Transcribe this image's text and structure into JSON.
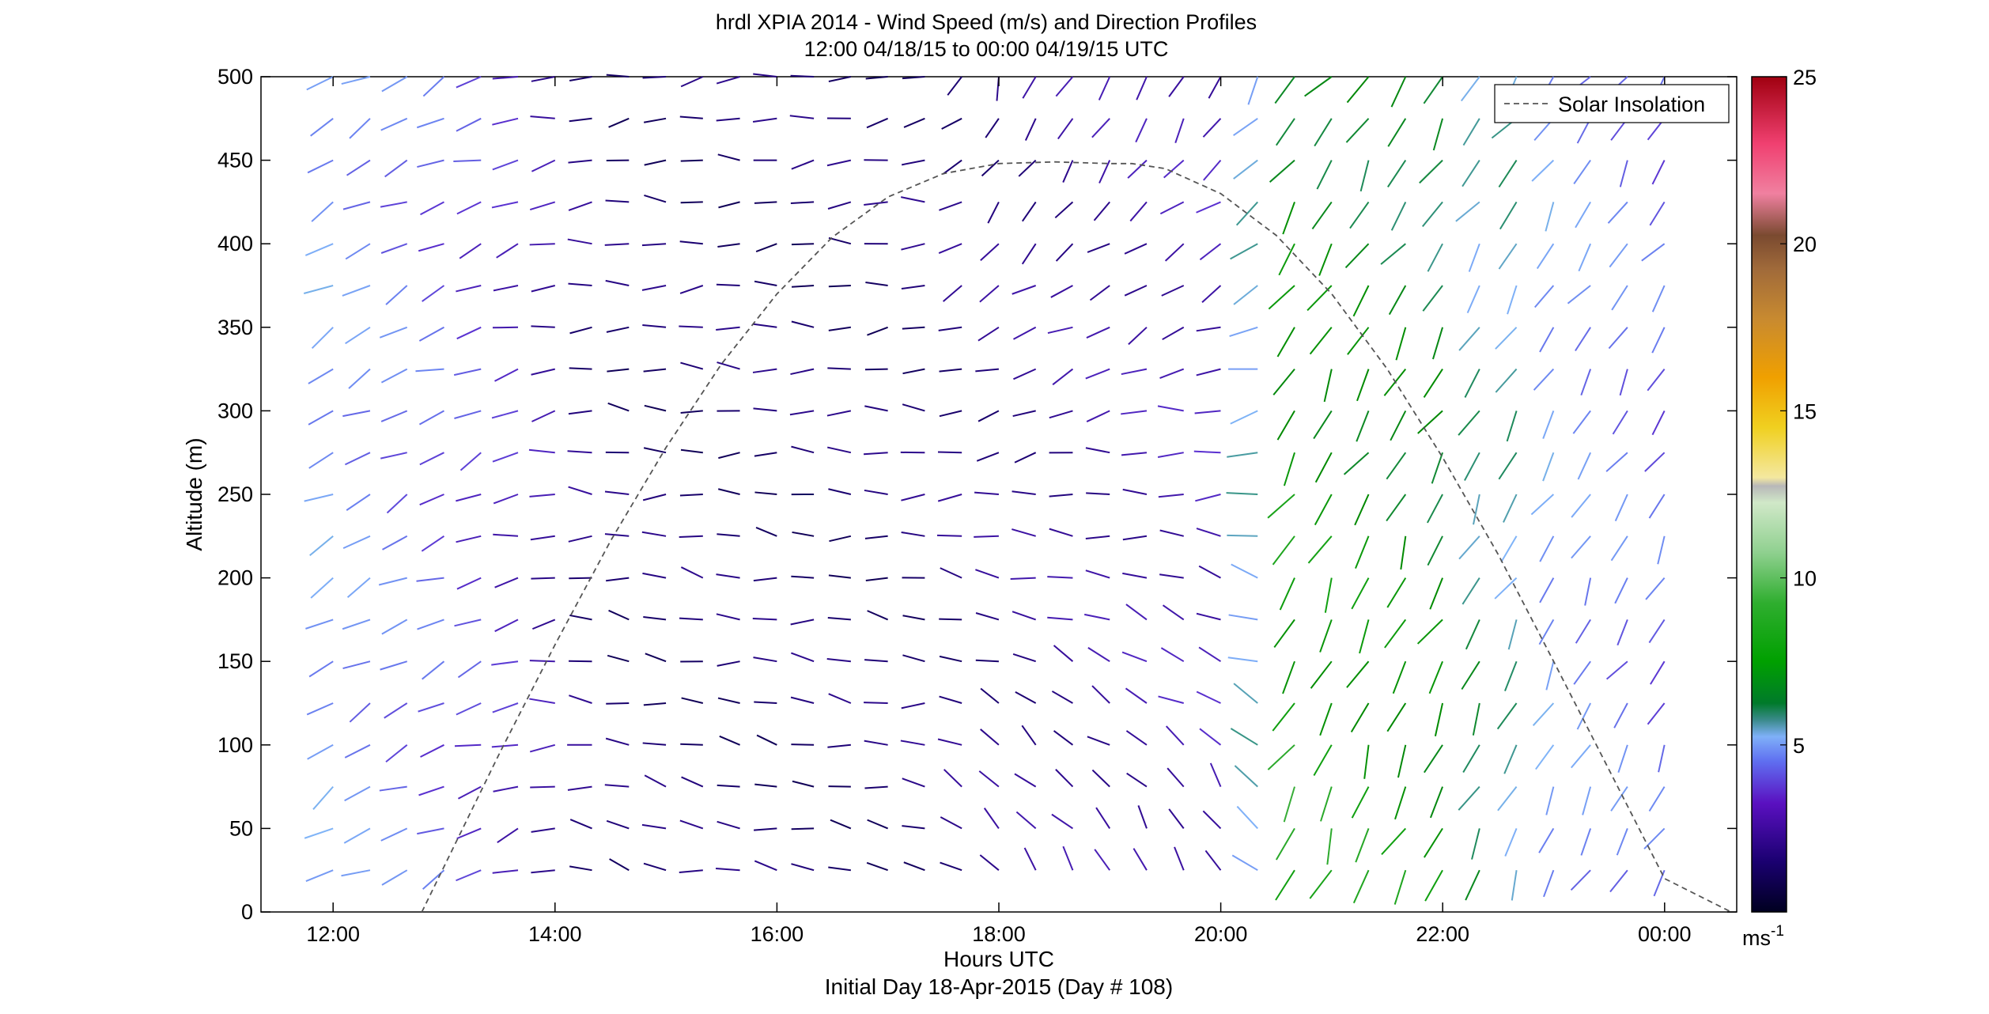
{
  "chart_data": {
    "type": "wind-barb-profile",
    "title": "hrdl XPIA 2014 - Wind Speed (m/s) and Direction Profiles",
    "subtitle": "12:00 04/18/15 to 00:00 04/19/15  UTC",
    "xlabel": "Hours UTC",
    "xlabel2": "Initial Day 18-Apr-2015 (Day # 108)",
    "ylabel": "Altitude (m)",
    "x_ticks": [
      "12:00",
      "14:00",
      "16:00",
      "18:00",
      "20:00",
      "22:00",
      "00:00"
    ],
    "x_tick_hours": [
      12,
      14,
      16,
      18,
      20,
      22,
      24
    ],
    "xlim_hours": [
      11.35,
      24.65
    ],
    "y_ticks": [
      "0",
      "50",
      "100",
      "150",
      "200",
      "250",
      "300",
      "350",
      "400",
      "450",
      "500"
    ],
    "ylim": [
      0,
      500
    ],
    "colorbar": {
      "label": "ms",
      "label_superscript": "-1",
      "ticks": [
        "5",
        "10",
        "15",
        "20",
        "25"
      ],
      "range": [
        0,
        25
      ]
    },
    "legend": {
      "entry": "Solar Insolation",
      "style": "dashed",
      "placement": "top-right"
    },
    "solar_insolation": {
      "x_hours": [
        12.8,
        13.5,
        14.0,
        14.5,
        15.0,
        15.5,
        16.0,
        16.5,
        17.0,
        17.5,
        18.0,
        18.5,
        19.0,
        19.2,
        19.5,
        20.0,
        20.5,
        21.0,
        21.5,
        22.0,
        22.5,
        23.0,
        23.5,
        24.0,
        24.6
      ],
      "altitude_equiv": [
        0,
        95,
        160,
        222,
        278,
        328,
        370,
        404,
        428,
        442,
        448,
        449,
        448,
        448,
        445,
        430,
        405,
        370,
        325,
        272,
        214,
        150,
        85,
        20,
        -60
      ]
    },
    "wind": {
      "t_start_hours": 12.0,
      "dt_hours": 0.3333,
      "n_times": 37,
      "altitudes": [
        25,
        50,
        75,
        100,
        125,
        150,
        175,
        200,
        225,
        250,
        275,
        300,
        325,
        350,
        375,
        400,
        425,
        450,
        475,
        500
      ],
      "speed_profile_hours": [
        12,
        13,
        13.8,
        14.5,
        17.0,
        18.0,
        20.2,
        20.5,
        22.0,
        23.0,
        24.2
      ],
      "speed_profile_ms": [
        5.0,
        4.0,
        3.0,
        1.5,
        1.5,
        2.0,
        3.0,
        9.0,
        8.0,
        5.0,
        4.0
      ],
      "direction_profile_hours": [
        12,
        13.5,
        14.5,
        17.3,
        18.0,
        20.3,
        20.7,
        24.2
      ],
      "direction_deg_low": [
        240,
        250,
        285,
        280,
        325,
        330,
        200,
        210
      ],
      "direction_deg_high": [
        240,
        250,
        265,
        262,
        200,
        215,
        215,
        215
      ]
    }
  }
}
